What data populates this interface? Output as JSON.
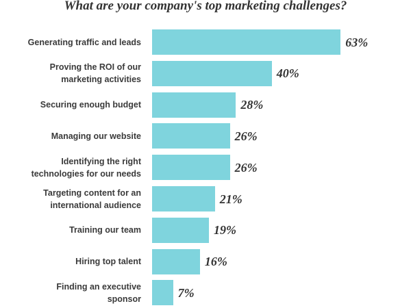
{
  "chart_data": {
    "type": "bar",
    "orientation": "horizontal",
    "title": "What are your company's top marketing challenges?",
    "categories": [
      "Generating traffic and leads",
      "Proving the ROI of our marketing activities",
      "Securing enough budget",
      "Managing our website",
      "Identifying the right technologies for our needs",
      "Targeting content for an international audience",
      "Training our team",
      "Hiring top talent",
      "Finding an executive sponsor"
    ],
    "values": [
      63,
      40,
      28,
      26,
      26,
      21,
      19,
      16,
      7
    ],
    "value_labels": [
      "63%",
      "40%",
      "28%",
      "26%",
      "26%",
      "21%",
      "19%",
      "16%",
      "7%"
    ],
    "color": "#7fd4dd"
  }
}
